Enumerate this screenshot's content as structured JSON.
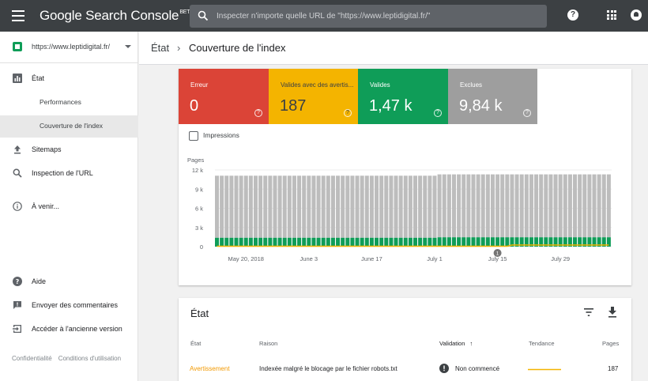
{
  "app": {
    "title": "Google Search Console",
    "badge": "BETA",
    "search_placeholder": "Inspecter n'importe quelle URL de \"https://www.leptidigital.fr/\"",
    "help_glyph": "?"
  },
  "sidebar": {
    "property": "https://www.leptidigital.fr/",
    "items": [
      {
        "label": "État"
      },
      {
        "label": "Performances"
      },
      {
        "label": "Couverture de l'index"
      },
      {
        "label": "Sitemaps"
      },
      {
        "label": "Inspection de l'URL"
      },
      {
        "label": "À venir..."
      },
      {
        "label": "Aide"
      },
      {
        "label": "Envoyer des commentaires"
      },
      {
        "label": "Accéder à l'ancienne version"
      }
    ],
    "footer": {
      "privacy": "Confidentialité",
      "terms": "Conditions d'utilisation"
    }
  },
  "breadcrumb": {
    "parent": "État",
    "separator": "›",
    "current": "Couverture de l'index"
  },
  "tiles": [
    {
      "label": "Erreur",
      "value": "0",
      "color": "#db4437"
    },
    {
      "label": "Valides avec des avertis...",
      "value": "187",
      "color": "#f4b400"
    },
    {
      "label": "Valides",
      "value": "1,47 k",
      "color": "#0f9d58"
    },
    {
      "label": "Exclues",
      "value": "9,84 k",
      "color": "#9e9e9e"
    }
  ],
  "impressions_label": "Impressions",
  "chart_data": {
    "type": "bar",
    "ylabel": "Pages",
    "ylim": [
      0,
      12000
    ],
    "yticks": [
      "12 k",
      "9 k",
      "6 k",
      "3 k",
      "0"
    ],
    "yticks_values": [
      12000,
      9000,
      6000,
      3000,
      0
    ],
    "xticks": [
      "May 20, 2018",
      "June 3",
      "June 17",
      "July 1",
      "July 15",
      "July 29"
    ],
    "annotation": {
      "label": "1",
      "position_tick": "July 15"
    },
    "bars_count": 82,
    "series": [
      {
        "name": "Valides",
        "color": "#0f9d58",
        "segments": [
          {
            "count": 46,
            "value": 1400
          },
          {
            "count": 36,
            "value": 1470
          }
        ]
      },
      {
        "name": "Exclues",
        "color": "#bdbdbd",
        "segments": [
          {
            "count": 46,
            "value": 9700
          },
          {
            "count": 36,
            "value": 9840
          }
        ]
      },
      {
        "name": "Valides avec des avertissements",
        "color": "#f4b400",
        "segments": [
          {
            "count": 61,
            "value": 0
          },
          {
            "count": 21,
            "value": 187
          }
        ]
      }
    ]
  },
  "table": {
    "title": "État",
    "columns": [
      "État",
      "Raison",
      "Validation",
      "Tendance",
      "Pages"
    ],
    "sort_glyph": "↑",
    "rows": [
      {
        "state": "Avertissement",
        "reason": "Indexée malgré le blocage par le fichier robots.txt",
        "validation": "Non commencé",
        "pages": "187",
        "state_color": "#f29900"
      }
    ]
  }
}
